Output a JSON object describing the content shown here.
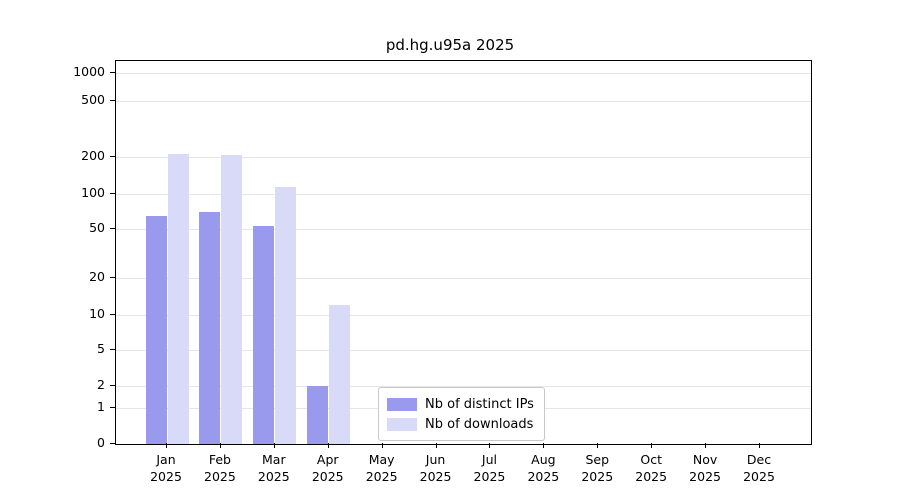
{
  "title": "pd.hg.u95a 2025",
  "chart_data": {
    "type": "bar",
    "title": "pd.hg.u95a 2025",
    "x_months": [
      "Jan",
      "Feb",
      "Mar",
      "Apr",
      "May",
      "Jun",
      "Jul",
      "Aug",
      "Sep",
      "Oct",
      "Nov",
      "Dec"
    ],
    "x_year_label": "2025",
    "series": [
      {
        "name": "Nb of distinct IPs",
        "color": "#9999ed",
        "values": [
          65,
          70,
          53,
          2,
          0,
          0,
          0,
          0,
          0,
          0,
          0,
          0
        ]
      },
      {
        "name": "Nb of downloads",
        "color": "#d9d9f8",
        "values": [
          210,
          205,
          115,
          12,
          0,
          0,
          0,
          0,
          0,
          0,
          0,
          0
        ]
      }
    ],
    "yscale": "symlog",
    "yticks": [
      0,
      1,
      2,
      5,
      10,
      20,
      50,
      100,
      200,
      500,
      1000
    ],
    "ylim": [
      0,
      1000
    ],
    "grid": true,
    "legend_position": "lower-center-inside"
  },
  "colors": {
    "grid": "#e6e6e6",
    "spine": "#000000",
    "background": "#ffffff",
    "text": "#000000"
  }
}
